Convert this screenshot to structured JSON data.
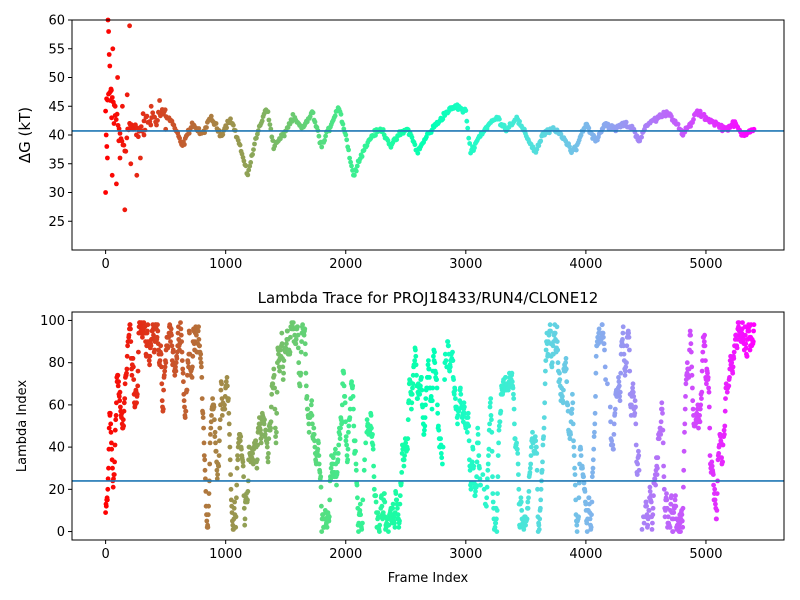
{
  "chart_data": [
    {
      "type": "scatter",
      "title": "",
      "xlabel": "",
      "ylabel": "ΔG (kT)",
      "xlim": [
        -280,
        5650
      ],
      "ylim": [
        20,
        60
      ],
      "xticks": [
        0,
        1000,
        2000,
        3000,
        4000,
        5000
      ],
      "yticks": [
        25,
        30,
        35,
        40,
        45,
        50,
        55,
        60
      ],
      "hline": 40.7,
      "hline_color": "#1f77b4",
      "colormap": "rainbow_r",
      "n_frames": 5400,
      "trace_keypoints": {
        "frame": [
          0,
          40,
          80,
          120,
          160,
          200,
          260,
          320,
          400,
          480,
          560,
          640,
          720,
          800,
          880,
          960,
          1040,
          1120,
          1180,
          1260,
          1340,
          1400,
          1480,
          1560,
          1640,
          1720,
          1800,
          1880,
          1940,
          2000,
          2060,
          2140,
          2220,
          2300,
          2380,
          2440,
          2520,
          2600,
          2680,
          2760,
          2840,
          2920,
          3000,
          3040,
          3120,
          3200,
          3260,
          3340,
          3420,
          3500,
          3580,
          3640,
          3720,
          3800,
          3880,
          3920,
          4000,
          4080,
          4160,
          4240,
          4320,
          4400,
          4440,
          4520,
          4600,
          4680,
          4760,
          4800,
          4880,
          4920,
          5000,
          5080,
          5160,
          5240,
          5300,
          5380
        ],
        "dG": [
          44,
          48,
          44,
          40,
          38,
          42,
          40,
          42,
          43,
          44,
          42,
          38,
          42,
          40,
          43,
          40,
          43,
          38,
          33,
          40,
          45,
          38,
          40,
          43,
          41,
          44,
          38,
          42,
          45,
          40,
          33,
          37,
          40,
          41,
          38,
          40,
          41,
          37,
          40,
          42,
          44,
          45,
          44,
          37,
          40,
          42,
          43,
          41,
          43,
          40,
          37,
          40,
          41,
          40,
          37,
          38,
          42,
          39,
          42,
          41,
          42,
          41,
          39,
          42,
          43,
          44,
          42,
          40,
          42,
          44,
          43,
          42,
          41,
          42,
          40,
          41
        ]
      },
      "scatter_points": [
        {
          "frame": 0,
          "dG": 30
        },
        {
          "frame": 5,
          "dG": 40
        },
        {
          "frame": 10,
          "dG": 38
        },
        {
          "frame": 15,
          "dG": 36
        },
        {
          "frame": 20,
          "dG": 60
        },
        {
          "frame": 25,
          "dG": 58
        },
        {
          "frame": 30,
          "dG": 54
        },
        {
          "frame": 35,
          "dG": 52
        },
        {
          "frame": 40,
          "dG": 46
        },
        {
          "frame": 45,
          "dG": 48
        },
        {
          "frame": 50,
          "dG": 43
        },
        {
          "frame": 55,
          "dG": 33
        },
        {
          "frame": 60,
          "dG": 55
        },
        {
          "frame": 70,
          "dG": 42
        },
        {
          "frame": 80,
          "dG": 45
        },
        {
          "frame": 90,
          "dG": 31.5
        },
        {
          "frame": 100,
          "dG": 50
        },
        {
          "frame": 110,
          "dG": 39
        },
        {
          "frame": 120,
          "dG": 36
        },
        {
          "frame": 140,
          "dG": 45
        },
        {
          "frame": 160,
          "dG": 27
        },
        {
          "frame": 180,
          "dG": 47
        },
        {
          "frame": 200,
          "dG": 59
        },
        {
          "frame": 210,
          "dG": 35
        },
        {
          "frame": 230,
          "dG": 41
        },
        {
          "frame": 260,
          "dG": 33
        },
        {
          "frame": 290,
          "dG": 36
        },
        {
          "frame": 320,
          "dG": 40
        },
        {
          "frame": 380,
          "dG": 45
        },
        {
          "frame": 450,
          "dG": 46
        },
        {
          "frame": 500,
          "dG": 41
        }
      ]
    },
    {
      "type": "scatter",
      "title": "Lambda Trace for PROJ18433/RUN4/CLONE12",
      "xlabel": "Frame Index",
      "ylabel": "Lambda Index",
      "xlim": [
        -280,
        5650
      ],
      "ylim": [
        -4,
        104
      ],
      "xticks": [
        0,
        1000,
        2000,
        3000,
        4000,
        5000
      ],
      "yticks": [
        0,
        20,
        40,
        60,
        80,
        100
      ],
      "hline": 24,
      "hline_color": "#1f77b4",
      "colormap": "rainbow_r",
      "n_frames": 5400,
      "lambda_range": [
        0,
        99
      ],
      "sparse_columns": [
        2150,
        2820,
        3150,
        4180,
        4470
      ]
    }
  ]
}
